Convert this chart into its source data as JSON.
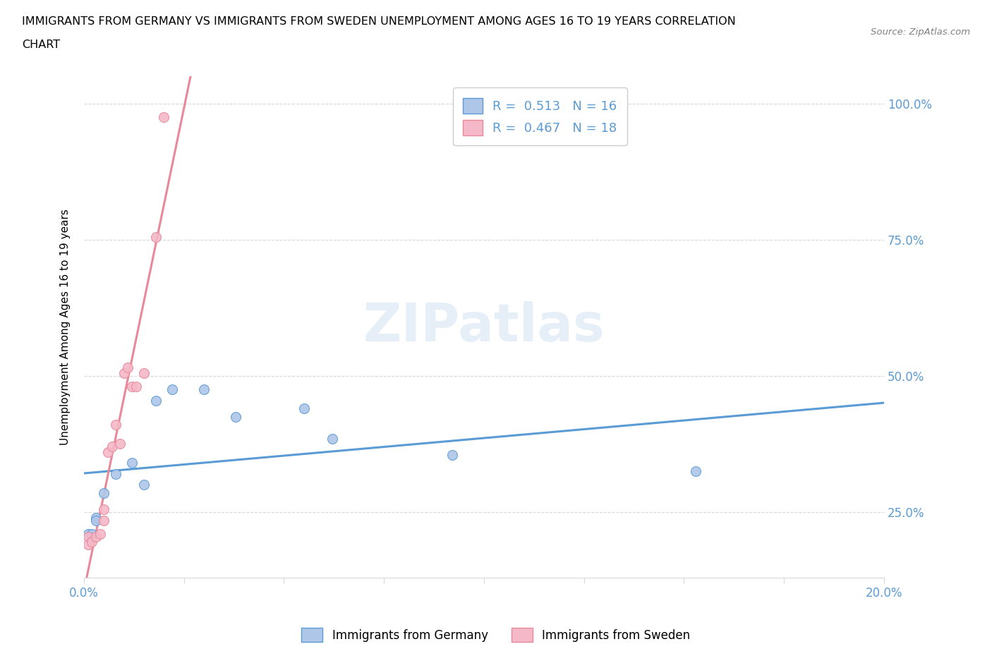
{
  "title_line1": "IMMIGRANTS FROM GERMANY VS IMMIGRANTS FROM SWEDEN UNEMPLOYMENT AMONG AGES 16 TO 19 YEARS CORRELATION",
  "title_line2": "CHART",
  "source": "Source: ZipAtlas.com",
  "ylabel": "Unemployment Among Ages 16 to 19 years",
  "xlim": [
    0.0,
    0.2
  ],
  "ylim": [
    0.13,
    1.05
  ],
  "xticks": [
    0.0,
    0.025,
    0.05,
    0.075,
    0.1,
    0.125,
    0.15,
    0.175,
    0.2
  ],
  "ytick_labels_right": [
    "25.0%",
    "50.0%",
    "75.0%",
    "100.0%"
  ],
  "yticks_right": [
    0.25,
    0.5,
    0.75,
    1.0
  ],
  "germany_x": [
    0.001,
    0.002,
    0.003,
    0.003,
    0.005,
    0.008,
    0.012,
    0.015,
    0.018,
    0.022,
    0.03,
    0.038,
    0.055,
    0.062,
    0.092,
    0.153
  ],
  "germany_y": [
    0.21,
    0.21,
    0.24,
    0.235,
    0.285,
    0.32,
    0.34,
    0.3,
    0.455,
    0.475,
    0.475,
    0.425,
    0.44,
    0.385,
    0.355,
    0.325
  ],
  "sweden_x": [
    0.001,
    0.001,
    0.002,
    0.003,
    0.004,
    0.005,
    0.005,
    0.006,
    0.007,
    0.008,
    0.009,
    0.01,
    0.011,
    0.012,
    0.013,
    0.015,
    0.018,
    0.02
  ],
  "sweden_y": [
    0.205,
    0.19,
    0.195,
    0.205,
    0.21,
    0.235,
    0.255,
    0.36,
    0.37,
    0.41,
    0.375,
    0.505,
    0.515,
    0.48,
    0.48,
    0.505,
    0.755,
    0.975
  ],
  "germany_color": "#aec6e8",
  "sweden_color": "#f4b8c8",
  "germany_edge_color": "#5b9bd5",
  "sweden_edge_color": "#e8889a",
  "germany_trend_color": "#5b9bd5",
  "sweden_trend_color": "#e8889a",
  "R_germany": 0.513,
  "N_germany": 16,
  "R_sweden": 0.467,
  "N_sweden": 18,
  "watermark": "ZIPatlas",
  "dot_size": 100,
  "legend_label_germany": "Immigrants from Germany",
  "legend_label_sweden": "Immigrants from Sweden",
  "grid_color": "#d8d8d8",
  "axis_label_color": "#5b9bd5"
}
